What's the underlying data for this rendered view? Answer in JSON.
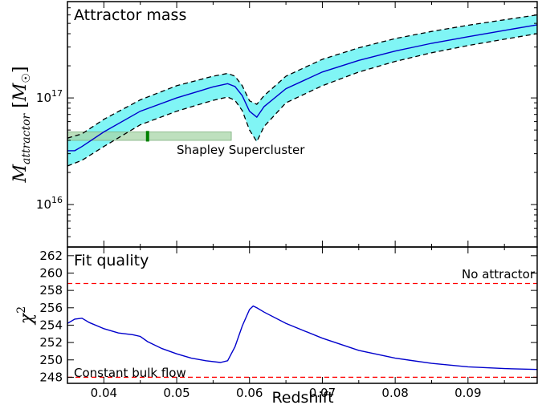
{
  "chart_data": [
    {
      "panel": "top",
      "type": "line",
      "title": "Attractor mass",
      "ylabel": "M_attractor [M☉]",
      "yscale": "log",
      "xlim": [
        0.035,
        0.0995
      ],
      "ylim": [
        4000000000000000.0,
        8e+17
      ],
      "yticks": [
        {
          "value": 1e+16,
          "label_base": "10",
          "label_exp": "16"
        },
        {
          "value": 1e+17,
          "label_base": "10",
          "label_exp": "17"
        }
      ],
      "series": [
        {
          "role": "central",
          "color": "#0000cc",
          "x": [
            0.035,
            0.036,
            0.037,
            0.04,
            0.045,
            0.05,
            0.055,
            0.057,
            0.058,
            0.059,
            0.06,
            0.061,
            0.062,
            0.065,
            0.07,
            0.075,
            0.08,
            0.085,
            0.09,
            0.095,
            0.0995
          ],
          "y": [
            3.2e+16,
            3.2e+16,
            3.5e+16,
            4.8e+16,
            7.5e+16,
            1e+17,
            1.27e+17,
            1.36e+17,
            1.28e+17,
            1.05e+17,
            7.5e+16,
            6.6e+16,
            8.3e+16,
            1.22e+17,
            1.75e+17,
            2.25e+17,
            2.75e+17,
            3.25e+17,
            3.75e+17,
            4.3e+17,
            4.85e+17
          ]
        },
        {
          "role": "upper",
          "color": "#000000",
          "x": [
            0.035,
            0.037,
            0.04,
            0.045,
            0.05,
            0.055,
            0.057,
            0.058,
            0.059,
            0.06,
            0.061,
            0.062,
            0.065,
            0.07,
            0.075,
            0.08,
            0.085,
            0.09,
            0.095,
            0.0995
          ],
          "y": [
            4.2e+16,
            4.6e+16,
            6.3e+16,
            9.6e+16,
            1.3e+17,
            1.6e+17,
            1.7e+17,
            1.6e+17,
            1.3e+17,
            9.4e+16,
            8.7e+16,
            1.05e+17,
            1.6e+17,
            2.3e+17,
            2.95e+17,
            3.6e+17,
            4.2e+17,
            4.8e+17,
            5.4e+17,
            6e+17
          ]
        },
        {
          "role": "lower",
          "color": "#000000",
          "x": [
            0.035,
            0.037,
            0.04,
            0.045,
            0.05,
            0.055,
            0.057,
            0.058,
            0.059,
            0.06,
            0.061,
            0.062,
            0.065,
            0.07,
            0.075,
            0.08,
            0.085,
            0.09,
            0.095,
            0.0995
          ],
          "y": [
            2.3e+16,
            2.6e+16,
            3.5e+16,
            5.6e+16,
            7.5e+16,
            9.5e+16,
            1.02e+17,
            9.5e+16,
            7.6e+16,
            5e+16,
            3.9e+16,
            5.4e+16,
            9e+16,
            1.3e+17,
            1.75e+17,
            2.2e+17,
            2.65e+17,
            3.1e+17,
            3.55e+17,
            4e+17
          ]
        }
      ],
      "band_color": "#80f5f5",
      "annotation": {
        "label": "Shapley Supercluster",
        "box_x": [
          0.035,
          0.0575
        ],
        "box_y": [
          4e+16,
          4.8e+16
        ],
        "box_color": "#a8d5a8",
        "marker_x": 0.046,
        "marker_y": [
          3.9e+16,
          4.9e+16
        ],
        "marker_color": "#008000"
      }
    },
    {
      "panel": "bottom",
      "type": "line",
      "title": "Fit quality",
      "ylabel": "χ²",
      "xlabel": "Redshift",
      "xlim": [
        0.035,
        0.0995
      ],
      "ylim": [
        247.3,
        263
      ],
      "yticks": [
        248,
        250,
        252,
        254,
        256,
        258,
        260,
        262
      ],
      "xticks": [
        0.04,
        0.05,
        0.06,
        0.07,
        0.08,
        0.09
      ],
      "series": [
        {
          "color": "#0000cc",
          "x": [
            0.035,
            0.036,
            0.037,
            0.038,
            0.04,
            0.042,
            0.044,
            0.045,
            0.046,
            0.048,
            0.05,
            0.052,
            0.054,
            0.056,
            0.057,
            0.058,
            0.059,
            0.06,
            0.0605,
            0.061,
            0.062,
            0.065,
            0.07,
            0.075,
            0.08,
            0.085,
            0.09,
            0.095,
            0.0995
          ],
          "y": [
            254.2,
            254.7,
            254.8,
            254.3,
            253.6,
            253.1,
            252.9,
            252.7,
            252.1,
            251.3,
            250.7,
            250.2,
            249.9,
            249.7,
            249.9,
            251.5,
            253.9,
            255.8,
            256.2,
            256.0,
            255.5,
            254.2,
            252.5,
            251.1,
            250.2,
            249.6,
            249.2,
            249.0,
            248.9
          ]
        }
      ],
      "reference_lines": [
        {
          "label": "No attractor",
          "y": 258.8,
          "color": "#ff0000"
        },
        {
          "label": "Constant bulk flow",
          "y": 248.0,
          "color": "#ff0000"
        }
      ]
    }
  ]
}
